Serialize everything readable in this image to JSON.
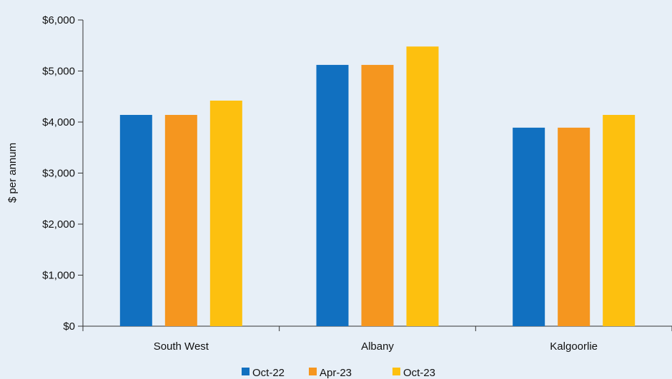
{
  "chart_data": {
    "type": "bar",
    "title": "",
    "xlabel": "",
    "ylabel": "$ per annum",
    "categories": [
      "South West",
      "Albany",
      "Kalgoorlie"
    ],
    "series": [
      {
        "name": "Oct-22",
        "color": "#1170c0",
        "values": [
          4140,
          5120,
          3890
        ]
      },
      {
        "name": "Apr-23",
        "color": "#f5961f",
        "values": [
          4140,
          5120,
          3890
        ]
      },
      {
        "name": "Oct-23",
        "color": "#fdc00f",
        "values": [
          4420,
          5480,
          4140
        ]
      }
    ],
    "ylim": [
      0,
      6000
    ],
    "yticks": [
      0,
      1000,
      2000,
      3000,
      4000,
      5000,
      6000
    ],
    "ytick_labels": [
      "$0",
      "$1,000",
      "$2,000",
      "$3,000",
      "$4,000",
      "$5,000",
      "$6,000"
    ],
    "grid": false,
    "legend_position": "bottom"
  }
}
